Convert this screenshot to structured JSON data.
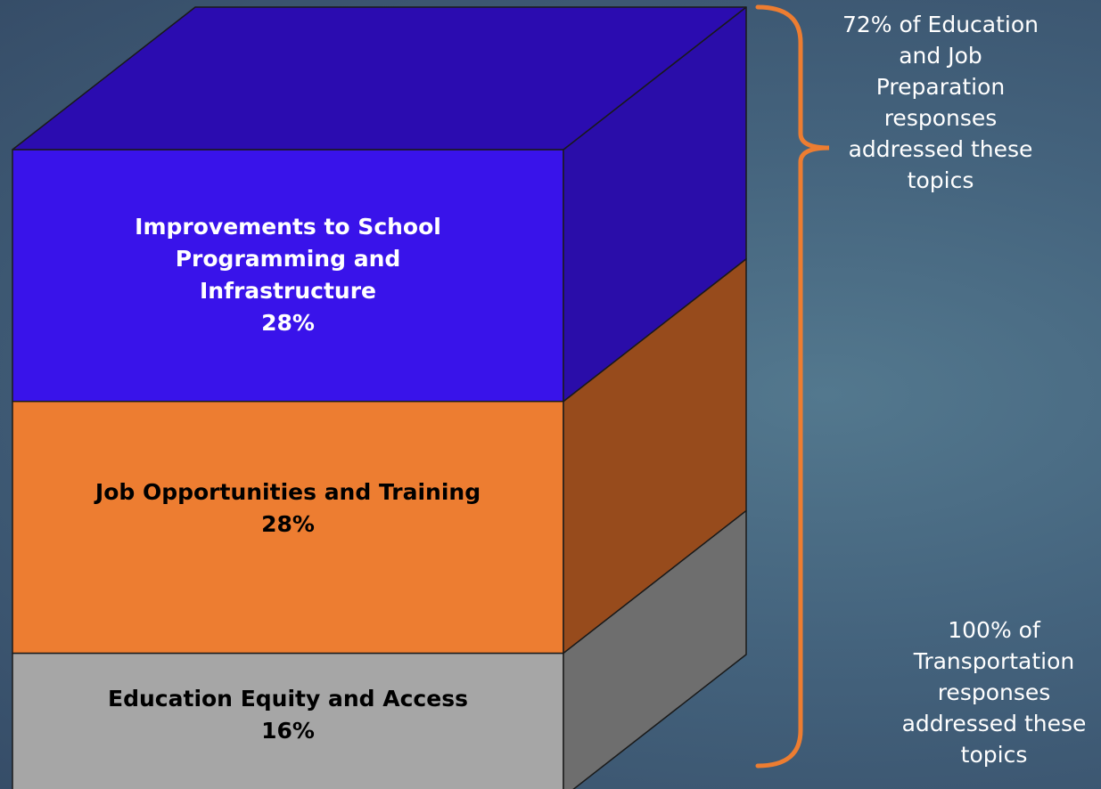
{
  "chart_data": {
    "type": "bar",
    "stacked": true,
    "style": "3d-stacked-column",
    "segments": [
      {
        "label": "Education Equity and Access",
        "value_label": "16%",
        "value": 16,
        "color": "#a6a6a6",
        "side_color": "#6e6e6e",
        "text_color": "#000000"
      },
      {
        "label": "Job Opportunities and Training",
        "value_label": "28%",
        "value": 28,
        "color": "#ed7d31",
        "side_color": "#974b1c",
        "text_color": "#000000"
      },
      {
        "label": "Improvements to School Programming and Infrastructure",
        "value_label": "28%",
        "value": 28,
        "color": "#3913ea",
        "side_color": "#2a0da9",
        "top_color": "#2b0cb0",
        "text_color": "#ffffff"
      }
    ],
    "bracket_color": "#ed7d31"
  },
  "annotations": [
    {
      "text": "72% of Education and Job Preparation responses addressed these topics"
    },
    {
      "text": "100% of Transportation responses addressed these topics"
    }
  ]
}
